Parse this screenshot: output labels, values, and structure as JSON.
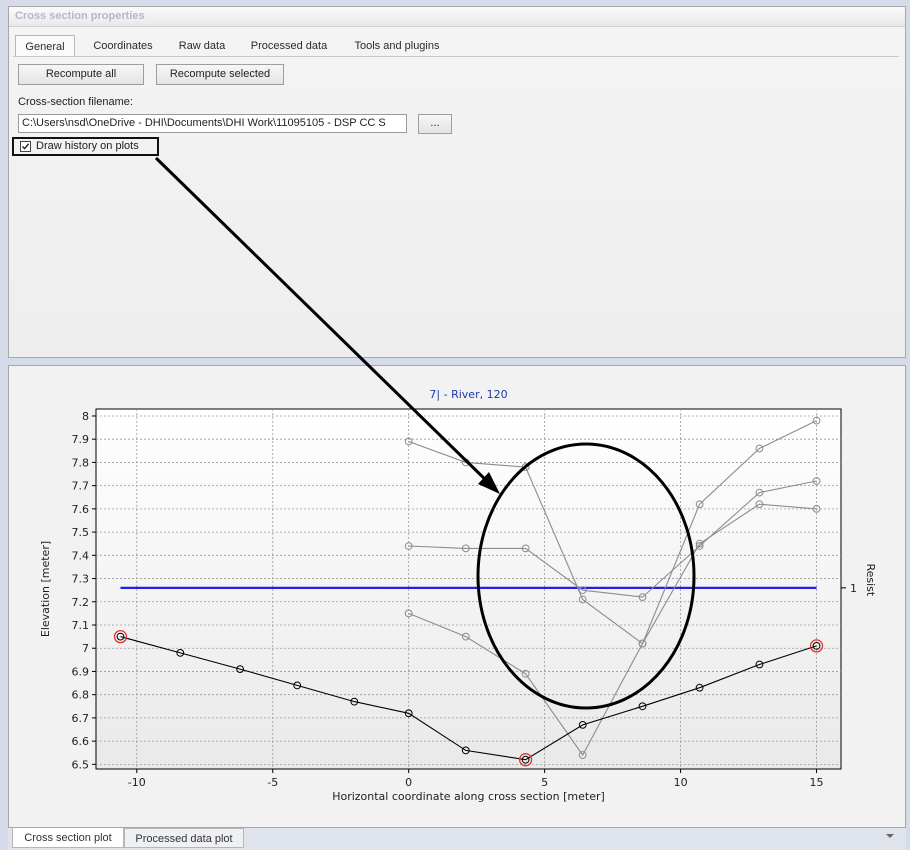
{
  "props": {
    "title": "Cross section properties",
    "tabs": [
      "General",
      "Coordinates",
      "Raw data",
      "Processed data",
      "Tools and plugins"
    ],
    "recompute_all": "Recompute all",
    "recompute_selected": "Recompute selected",
    "filename_label": "Cross-section filename:",
    "filename_value": "C:\\Users\\nsd\\OneDrive - DHI\\Documents\\DHI Work\\11095105 - DSP CC S",
    "browse_label": "...",
    "draw_history_label": "Draw history on plots",
    "draw_history_checked": true
  },
  "bottom_tabs": [
    "Cross section plot",
    "Processed data plot"
  ],
  "chart_data": {
    "type": "line",
    "title": "7| - River, 120",
    "xlabel": "Horizontal coordinate along cross section [meter]",
    "ylabel": "Elevation [meter]",
    "y2label": "Resist",
    "xlim": [
      -11.5,
      15.9
    ],
    "ylim": [
      6.48,
      8.03
    ],
    "xticks": [
      -10,
      -5,
      0,
      5,
      10,
      15
    ],
    "yticks": [
      6.5,
      6.6,
      6.7,
      6.8,
      6.9,
      7,
      7.1,
      7.2,
      7.3,
      7.4,
      7.5,
      7.6,
      7.7,
      7.8,
      7.9,
      8
    ],
    "y2_tick_label": "1",
    "grid": true,
    "resistance_level": 7.26,
    "series": [
      {
        "role": "current",
        "color": "#000000",
        "x": [
          -10.6,
          -8.4,
          -6.2,
          -4.1,
          -2.0,
          0.0,
          2.1,
          4.3,
          6.4,
          8.6,
          10.7,
          12.9,
          15.0
        ],
        "y": [
          7.05,
          6.98,
          6.91,
          6.84,
          6.77,
          6.72,
          6.56,
          6.52,
          6.67,
          6.75,
          6.83,
          6.93,
          7.01
        ]
      },
      {
        "role": "history",
        "color": "#8c8c8c",
        "x": [
          0.0,
          2.1,
          4.3,
          6.4,
          8.6,
          10.7,
          12.9,
          15.0
        ],
        "y": [
          7.89,
          7.8,
          7.78,
          7.21,
          7.02,
          7.45,
          7.62,
          7.6
        ]
      },
      {
        "role": "history",
        "color": "#8c8c8c",
        "x": [
          0.0,
          2.1,
          4.3,
          6.4,
          8.6,
          10.7,
          12.9,
          15.0
        ],
        "y": [
          7.44,
          7.43,
          7.43,
          7.25,
          7.22,
          7.44,
          7.67,
          7.72
        ]
      },
      {
        "role": "history",
        "color": "#8c8c8c",
        "x": [
          0.0,
          2.1,
          4.3,
          6.4,
          8.6,
          10.7,
          12.9,
          15.0
        ],
        "y": [
          7.15,
          7.05,
          6.89,
          6.54,
          7.02,
          7.62,
          7.86,
          7.98
        ]
      }
    ],
    "highlighted_points": [
      {
        "x": -10.6,
        "y": 7.05
      },
      {
        "x": 4.3,
        "y": 6.52
      },
      {
        "x": 15.0,
        "y": 7.01
      }
    ],
    "colors": {
      "resist_line": "#1f1fe6",
      "highlight": "#e23030",
      "title": "#1a3aa8"
    }
  }
}
